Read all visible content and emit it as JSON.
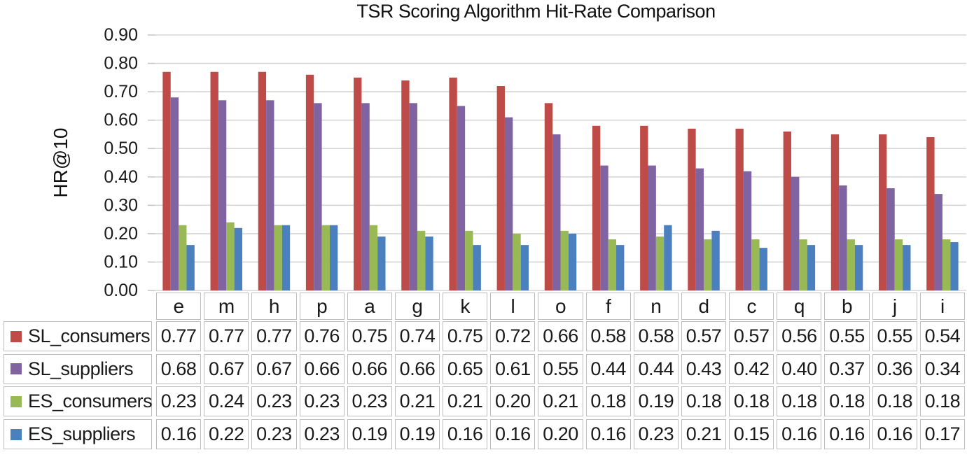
{
  "chart_data": {
    "type": "bar",
    "title": "TSR Scoring Algorithm Hit-Rate Comparison",
    "xlabel": "",
    "ylabel": "HR@10",
    "ylim": [
      0,
      0.9
    ],
    "ytick_step": 0.1,
    "ytick_format": "0.00",
    "grid": true,
    "legend_position": "table-left-column",
    "value_format": "0.00",
    "categories": [
      "e",
      "m",
      "h",
      "p",
      "a",
      "g",
      "k",
      "l",
      "o",
      "f",
      "n",
      "d",
      "c",
      "q",
      "b",
      "j",
      "i"
    ],
    "series": [
      {
        "name": "SL_consumers",
        "color": "#be4b48",
        "values": [
          0.77,
          0.77,
          0.77,
          0.76,
          0.75,
          0.74,
          0.75,
          0.72,
          0.66,
          0.58,
          0.58,
          0.57,
          0.57,
          0.56,
          0.55,
          0.55,
          0.54
        ]
      },
      {
        "name": "SL_suppliers",
        "color": "#8064a2",
        "values": [
          0.68,
          0.67,
          0.67,
          0.66,
          0.66,
          0.66,
          0.65,
          0.61,
          0.55,
          0.44,
          0.44,
          0.43,
          0.42,
          0.4,
          0.37,
          0.36,
          0.34
        ]
      },
      {
        "name": "ES_consumers",
        "color": "#98b954",
        "values": [
          0.23,
          0.24,
          0.23,
          0.23,
          0.23,
          0.21,
          0.21,
          0.2,
          0.21,
          0.18,
          0.19,
          0.18,
          0.18,
          0.18,
          0.18,
          0.18,
          0.18
        ]
      },
      {
        "name": "ES_suppliers",
        "color": "#4a80bd",
        "values": [
          0.16,
          0.22,
          0.23,
          0.23,
          0.19,
          0.19,
          0.16,
          0.16,
          0.2,
          0.16,
          0.23,
          0.21,
          0.15,
          0.16,
          0.16,
          0.16,
          0.17
        ]
      }
    ]
  }
}
